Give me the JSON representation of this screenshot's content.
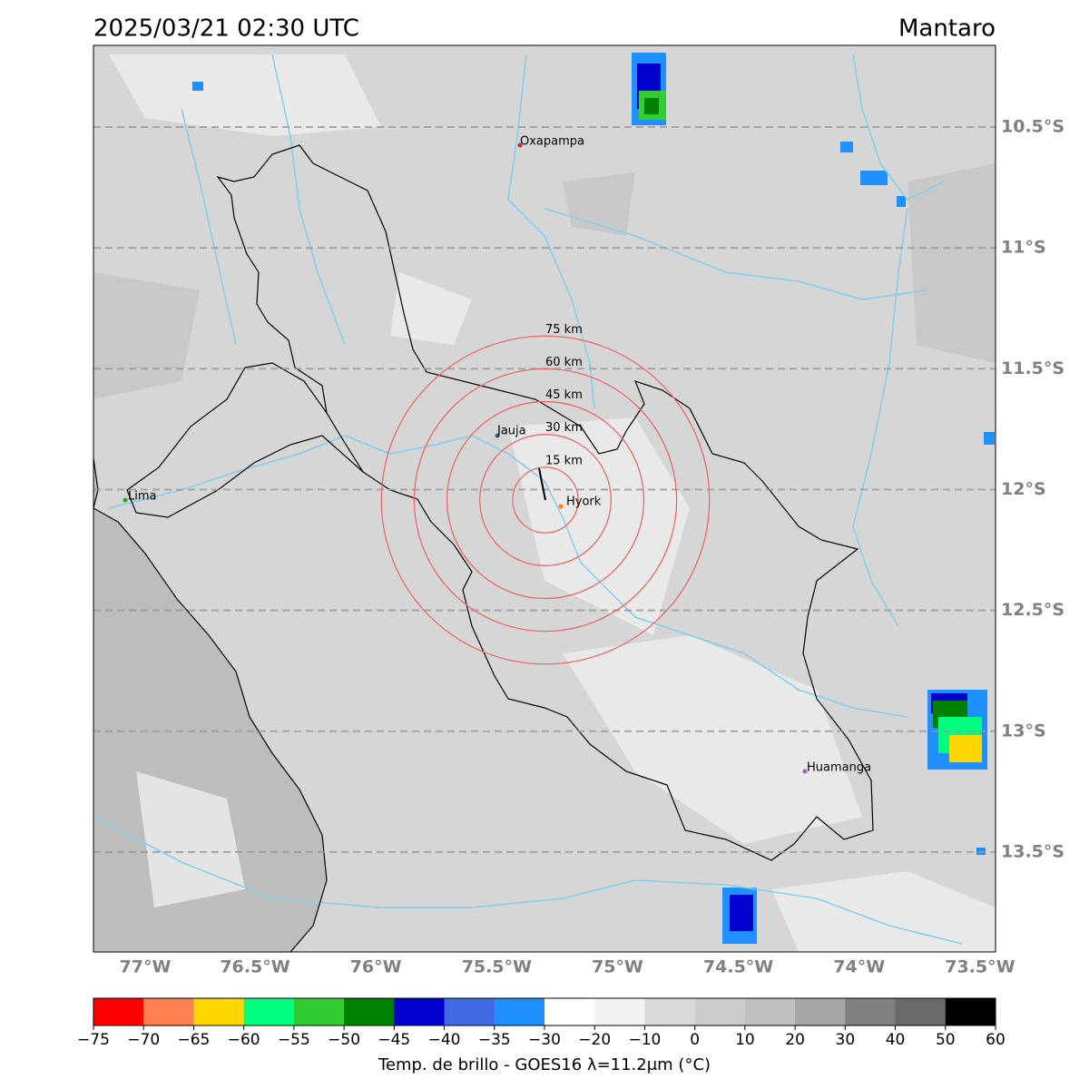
{
  "header": {
    "title": "2025/03/21 02:30 UTC",
    "region": "Mantaro"
  },
  "map": {
    "longitudes": [
      {
        "value": -77,
        "label": "77°W"
      },
      {
        "value": -76.5,
        "label": "76.5°W"
      },
      {
        "value": -76,
        "label": "76°W"
      },
      {
        "value": -75.5,
        "label": "75.5°W"
      },
      {
        "value": -75,
        "label": "75°W"
      },
      {
        "value": -74.5,
        "label": "74.5°W"
      },
      {
        "value": -74,
        "label": "74°W"
      },
      {
        "value": -73.5,
        "label": "73.5°W"
      }
    ],
    "latitudes": [
      {
        "value": -10.5,
        "label": "10.5°S"
      },
      {
        "value": -11,
        "label": "11°S"
      },
      {
        "value": -11.5,
        "label": "11.5°S"
      },
      {
        "value": -12,
        "label": "12°S"
      },
      {
        "value": -12.5,
        "label": "12.5°S"
      },
      {
        "value": -13,
        "label": "13°S"
      },
      {
        "value": -13.5,
        "label": "13.5°S"
      }
    ],
    "rings": [
      {
        "value": 15,
        "label": "15 km"
      },
      {
        "value": 30,
        "label": "30 km"
      },
      {
        "value": 45,
        "label": "45 km"
      },
      {
        "value": 60,
        "label": "60 km"
      },
      {
        "value": 75,
        "label": "75 km"
      }
    ],
    "places": [
      "Oxapampa",
      "Jauja",
      "Hyork",
      "Lima",
      "Huamanga"
    ]
  },
  "colorbar": {
    "label": "Temp. de brillo - GOES16 λ=11.2μm (°C)",
    "ticks": [
      {
        "value": -75,
        "label": "−75"
      },
      {
        "value": -70,
        "label": "−70"
      },
      {
        "value": -65,
        "label": "−65"
      },
      {
        "value": -60,
        "label": "−60"
      },
      {
        "value": -55,
        "label": "−55"
      },
      {
        "value": -50,
        "label": "−50"
      },
      {
        "value": -45,
        "label": "−45"
      },
      {
        "value": -40,
        "label": "−40"
      },
      {
        "value": -35,
        "label": "−35"
      },
      {
        "value": -30,
        "label": "−30"
      },
      {
        "value": -20,
        "label": "−20"
      },
      {
        "value": -10,
        "label": "−10"
      },
      0,
      10,
      20,
      30,
      40,
      50,
      60
    ],
    "colors": [
      "#ff0000",
      "#ff7f50",
      "#ffd700",
      "#00ff7f",
      "#32cd32",
      "#008000",
      "#0000cd",
      "#4169e1",
      "#1e90ff",
      "#ffffff",
      "#f2f2f2",
      "#d9d9d9",
      "#cccccc",
      "#bfbfbf",
      "#a6a6a6",
      "#808080",
      "#696969",
      "#000000"
    ]
  }
}
